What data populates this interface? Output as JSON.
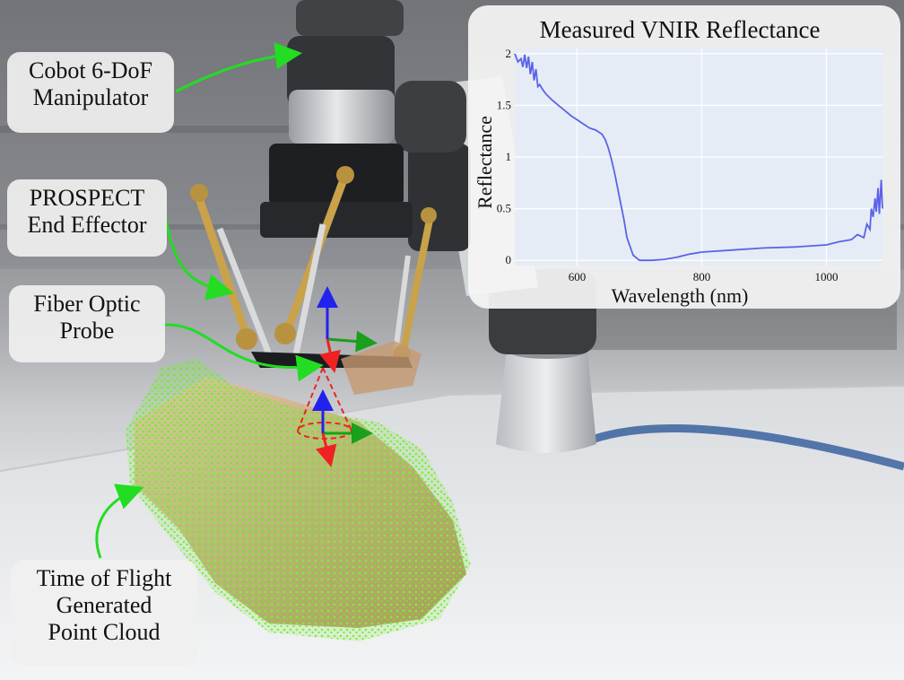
{
  "labels": {
    "cobot": [
      "Cobot 6-DoF",
      "Manipulator"
    ],
    "prospect": [
      "PROSPECT",
      "End Effector"
    ],
    "fiber": [
      "Fiber Optic",
      "Probe"
    ],
    "tof": [
      "Time of Flight",
      "Generated",
      "Point Cloud"
    ]
  },
  "colors": {
    "arrow": "#22dd22",
    "point_cloud": "#7cf03a",
    "axis_x": "#1aa01a",
    "axis_y": "#2222ee",
    "axis_z": "#ee2222",
    "spectrum_line": "#5b63e8"
  },
  "chart_data": {
    "type": "line",
    "title": "Measured VNIR Reflectance",
    "xlabel": "Wavelength (nm)",
    "ylabel": "Reflectance",
    "xlim": [
      500,
      1090
    ],
    "ylim": [
      -0.05,
      2.05
    ],
    "x_ticks": [
      600,
      800,
      1000
    ],
    "y_ticks": [
      0,
      0.5,
      1,
      1.5,
      2
    ],
    "x_tick_labels": [
      "600",
      "800",
      "1000"
    ],
    "y_tick_labels": [
      "0",
      "0.5",
      "1",
      "1.5",
      "2"
    ],
    "grid": true,
    "series": [
      {
        "x": [
          500,
          505,
          510,
          513,
          516,
          519,
          522,
          525,
          528,
          531,
          534,
          537,
          540,
          545,
          550,
          555,
          560,
          570,
          580,
          590,
          600,
          610,
          620,
          630,
          640,
          645,
          650,
          655,
          660,
          665,
          670,
          675,
          680,
          690,
          700,
          720,
          740,
          760,
          780,
          800,
          850,
          900,
          950,
          1000,
          1020,
          1040,
          1050,
          1060,
          1065,
          1070,
          1072,
          1075,
          1078,
          1080,
          1083,
          1085,
          1088,
          1090
        ],
        "y": [
          2.0,
          1.92,
          1.95,
          1.87,
          1.99,
          1.86,
          1.97,
          1.8,
          1.92,
          1.74,
          1.85,
          1.68,
          1.7,
          1.65,
          1.61,
          1.58,
          1.55,
          1.5,
          1.45,
          1.4,
          1.36,
          1.32,
          1.28,
          1.26,
          1.22,
          1.17,
          1.09,
          0.98,
          0.85,
          0.7,
          0.55,
          0.4,
          0.22,
          0.05,
          0.0,
          0.0,
          0.01,
          0.03,
          0.06,
          0.08,
          0.1,
          0.12,
          0.13,
          0.15,
          0.18,
          0.2,
          0.25,
          0.22,
          0.35,
          0.3,
          0.5,
          0.42,
          0.6,
          0.47,
          0.7,
          0.45,
          0.78,
          0.5
        ]
      }
    ]
  }
}
